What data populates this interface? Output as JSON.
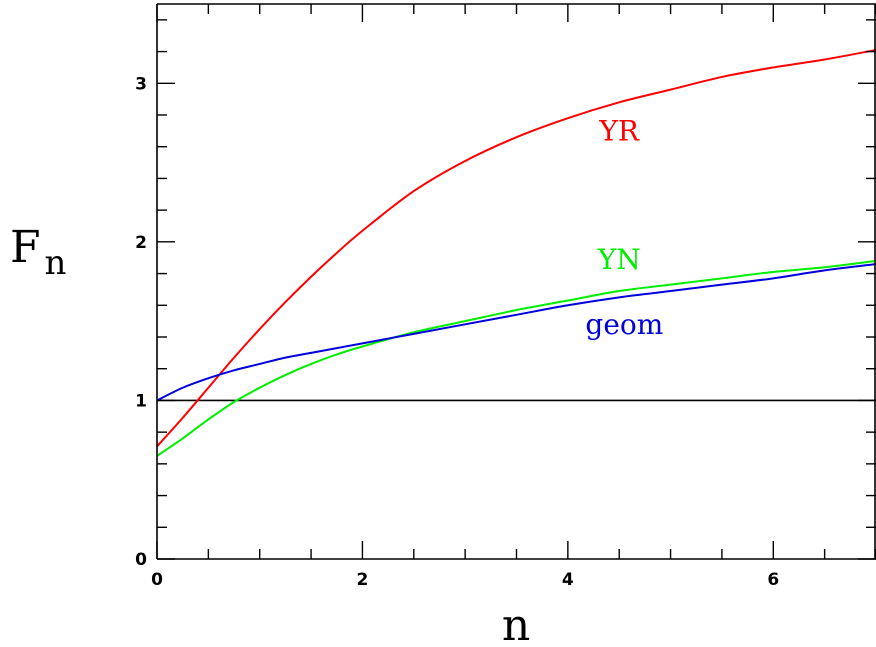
{
  "chart_data": {
    "type": "line",
    "xlabel": "n",
    "ylabel_main": "F",
    "ylabel_sub": "n",
    "xlim": [
      0,
      7
    ],
    "ylim": [
      0,
      3.5
    ],
    "x_ticks": [
      0,
      2,
      4,
      6
    ],
    "x_tick_labels": [
      "0",
      "2",
      "4",
      "6"
    ],
    "y_ticks": [
      0,
      1,
      2,
      3
    ],
    "y_tick_labels": [
      "0",
      "1",
      "2",
      "3"
    ],
    "reference_line": {
      "y": 1,
      "color": "#000000"
    },
    "series": [
      {
        "name": "YR",
        "color": "#ff0000",
        "x": [
          0,
          0.25,
          0.5,
          0.75,
          1.0,
          1.25,
          1.5,
          1.75,
          2.0,
          2.5,
          3.0,
          3.5,
          4.0,
          4.5,
          5.0,
          5.5,
          6.0,
          6.5,
          7.0
        ],
        "y": [
          0.71,
          0.89,
          1.08,
          1.27,
          1.45,
          1.62,
          1.78,
          1.93,
          2.07,
          2.32,
          2.51,
          2.66,
          2.78,
          2.88,
          2.96,
          3.04,
          3.1,
          3.15,
          3.21
        ]
      },
      {
        "name": "YN",
        "color": "#00ee00",
        "x": [
          0,
          0.25,
          0.5,
          0.75,
          1.0,
          1.25,
          1.5,
          1.75,
          2.0,
          2.5,
          3.0,
          3.5,
          4.0,
          4.5,
          5.0,
          5.5,
          6.0,
          6.5,
          7.0
        ],
        "y": [
          0.65,
          0.76,
          0.88,
          0.99,
          1.08,
          1.16,
          1.23,
          1.29,
          1.34,
          1.43,
          1.5,
          1.57,
          1.63,
          1.69,
          1.73,
          1.77,
          1.81,
          1.84,
          1.88
        ]
      },
      {
        "name": "geom",
        "color": "#0000dd",
        "x": [
          0,
          0.25,
          0.5,
          0.75,
          1.0,
          1.25,
          1.5,
          1.75,
          2.0,
          2.5,
          3.0,
          3.5,
          4.0,
          4.5,
          5.0,
          5.5,
          6.0,
          6.5,
          7.0
        ],
        "y": [
          1.0,
          1.08,
          1.14,
          1.19,
          1.23,
          1.27,
          1.3,
          1.33,
          1.36,
          1.42,
          1.48,
          1.54,
          1.6,
          1.65,
          1.69,
          1.73,
          1.77,
          1.82,
          1.86
        ]
      }
    ],
    "annotations": [
      {
        "text": "YR",
        "series": "YR",
        "x": 4.5,
        "y": 2.64
      },
      {
        "text": "YN",
        "series": "YN",
        "x": 4.5,
        "y": 1.83
      },
      {
        "text": "geom",
        "series": "geom",
        "x": 4.55,
        "y": 1.42
      }
    ]
  }
}
